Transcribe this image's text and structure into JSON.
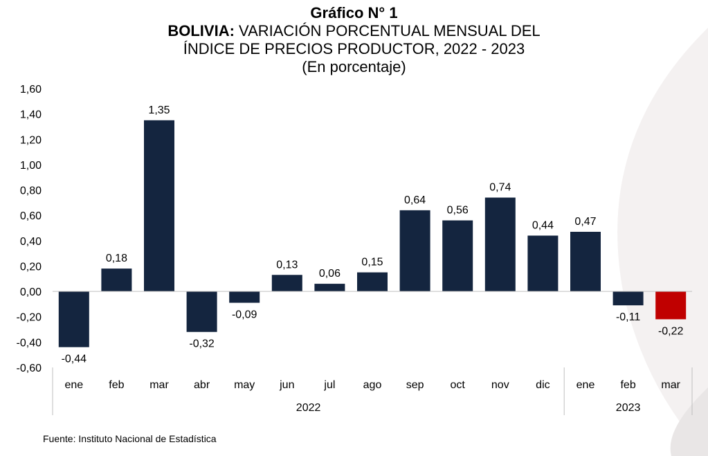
{
  "header": {
    "title": "Gráfico N° 1",
    "subtitle_bold": "BOLIVIA:",
    "subtitle_rest": " VARIACIÓN PORCENTUAL MENSUAL DEL",
    "subtitle_line2": "ÍNDICE DE PRECIOS PRODUCTOR, 2022 - 2023",
    "subtitle_line3": "(En porcentaje)"
  },
  "source": "Fuente: Instituto Nacional de Estadística",
  "chart_data": {
    "type": "bar",
    "categories": [
      "ene",
      "feb",
      "mar",
      "abr",
      "may",
      "jun",
      "jul",
      "ago",
      "sep",
      "oct",
      "nov",
      "dic",
      "ene",
      "feb",
      "mar"
    ],
    "values": [
      -0.44,
      0.18,
      1.35,
      -0.32,
      -0.09,
      0.13,
      0.06,
      0.15,
      0.64,
      0.56,
      0.74,
      0.44,
      0.47,
      -0.11,
      -0.22
    ],
    "value_labels": [
      "-0,44",
      "0,18",
      "1,35",
      "-0,32",
      "-0,09",
      "0,13",
      "0,06",
      "0,15",
      "0,64",
      "0,56",
      "0,74",
      "0,44",
      "0,47",
      "-0,11",
      "-0,22"
    ],
    "groups": [
      {
        "label": "2022",
        "start": 0,
        "end": 11
      },
      {
        "label": "2023",
        "start": 12,
        "end": 14
      }
    ],
    "ylim": [
      -0.6,
      1.6
    ],
    "yticks": [
      -0.6,
      -0.4,
      -0.2,
      0.0,
      0.2,
      0.4,
      0.6,
      0.8,
      1.0,
      1.2,
      1.4,
      1.6
    ],
    "ytick_labels": [
      "-0,60",
      "-0,40",
      "-0,20",
      "0,00",
      "0,20",
      "0,40",
      "0,60",
      "0,80",
      "1,00",
      "1,20",
      "1,40",
      "1,60"
    ],
    "grid": false,
    "colors": {
      "default": "#14253f",
      "highlight": "#c00000",
      "axis": "#bfbfbf"
    },
    "highlight_index": 14
  }
}
